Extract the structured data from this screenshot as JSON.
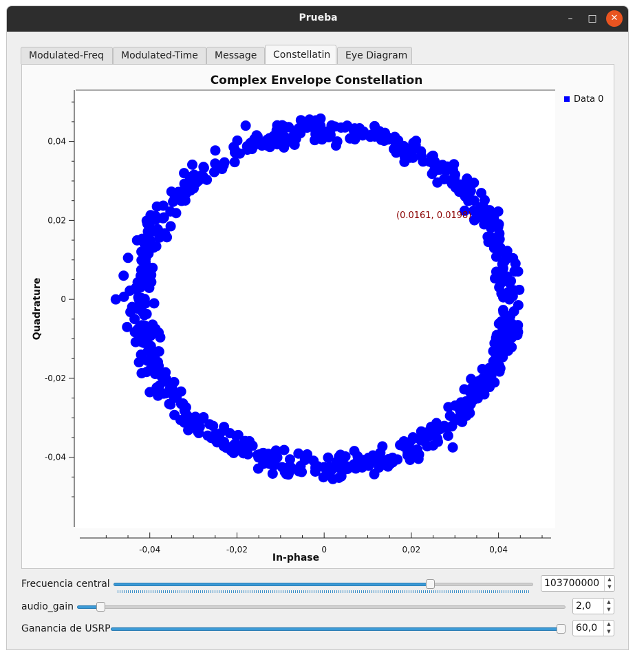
{
  "window": {
    "title": "Prueba",
    "accent_color": "#e95420"
  },
  "tabs": [
    {
      "label": "Modulated-Freq",
      "active": false
    },
    {
      "label": "Modulated-Time",
      "active": false
    },
    {
      "label": "Message",
      "active": false
    },
    {
      "label": "Constellatin",
      "active": true
    },
    {
      "label": "Eye Diagram",
      "active": false
    }
  ],
  "plot": {
    "cursor_readout": "(0.0161, 0.0198)"
  },
  "chart_data": {
    "type": "scatter",
    "title": "Complex Envelope Constellation",
    "xlabel": "In-phase",
    "ylabel": "Quadrature",
    "xlim": [
      -0.057,
      0.053
    ],
    "ylim": [
      -0.058,
      0.053
    ],
    "xticks": [
      "-0,04",
      "-0,02",
      "0",
      "0,02",
      "0,04"
    ],
    "yticks": [
      "0,04",
      "0,02",
      "0",
      "-0,02",
      "-0,04"
    ],
    "legend_position": "top-right",
    "marker_color": "#0000ff",
    "series": [
      {
        "name": "Data 0",
        "shape": "ring",
        "center": [
          0.0,
          0.0
        ],
        "radius": 0.0425,
        "jitter": 0.0022,
        "points": [
          [
            0.0425,
            0.0
          ],
          [
            0.0404,
            0.0131
          ],
          [
            0.0344,
            0.025
          ],
          [
            0.025,
            0.0344
          ],
          [
            0.0131,
            0.0404
          ],
          [
            0.0,
            0.0425
          ],
          [
            -0.0131,
            0.0404
          ],
          [
            -0.025,
            0.0344
          ],
          [
            -0.0344,
            0.025
          ],
          [
            -0.0404,
            0.0131
          ],
          [
            -0.0425,
            0.0
          ],
          [
            -0.0404,
            -0.0131
          ],
          [
            -0.0344,
            -0.025
          ],
          [
            -0.025,
            -0.0344
          ],
          [
            -0.0131,
            -0.0404
          ],
          [
            0.0,
            -0.0425
          ],
          [
            0.0131,
            -0.0404
          ],
          [
            0.025,
            -0.0344
          ],
          [
            0.0344,
            -0.025
          ],
          [
            0.0404,
            -0.0131
          ],
          [
            0.0431,
            -0.0062
          ],
          [
            -0.0478,
            0.0
          ],
          [
            -0.046,
            0.006
          ],
          [
            -0.0452,
            -0.007
          ],
          [
            -0.042,
            -0.014
          ],
          [
            -0.04,
            -0.0235
          ],
          [
            -0.018,
            0.044
          ],
          [
            -0.003,
            0.0445
          ],
          [
            0.003,
            0.04
          ],
          [
            0.002,
            -0.0455
          ],
          [
            0.025,
            -0.037
          ],
          [
            0.0295,
            -0.0375
          ],
          [
            0.037,
            0.02
          ],
          [
            0.039,
            0.013
          ],
          [
            0.0395,
            0.007
          ],
          [
            -0.039,
            -0.001
          ],
          [
            0.0016,
            -0.043
          ]
        ]
      }
    ]
  },
  "controls": [
    {
      "label": "Frecuencia central",
      "value": "103700000",
      "fraction": 0.76
    },
    {
      "label": "audio_gain",
      "value": "2,0",
      "fraction": 0.04
    },
    {
      "label": "Ganancia de USRP",
      "value": "60,0",
      "fraction": 1.0
    }
  ]
}
